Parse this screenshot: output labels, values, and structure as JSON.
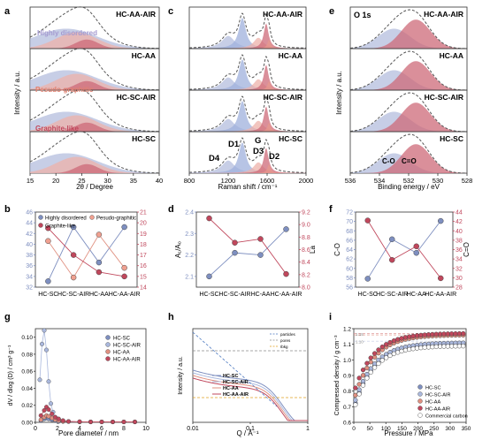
{
  "colors": {
    "blue": "#7e8fc0",
    "blue_fill": "#b4bedd",
    "pink": "#dc8c8c",
    "pink_fill": "#eeb1a9",
    "red": "#c0475c",
    "red_fill": "#cd6a78",
    "purple": "#a49ad0",
    "gray": "#8a8a8a",
    "orange": "#e0a020",
    "blue_dash": "#4d79c0"
  },
  "panels": {
    "a": {
      "letter": "a",
      "xlabel": "2θ / Degree",
      "ylabel": "Intensity / a.u.",
      "samples": [
        "HC-AA-AIR",
        "HC-AA",
        "HC-SC-AIR",
        "HC-SC"
      ],
      "annotations": [
        "Highly disordered",
        "Pesudo-graphitic",
        "Graphite-like"
      ],
      "xticks": [
        "15",
        "20",
        "25",
        "30",
        "35",
        "40"
      ],
      "xlim": [
        15,
        40
      ]
    },
    "c": {
      "letter": "c",
      "xlabel": "Raman shift / cm⁻¹",
      "samples": [
        "HC-AA-AIR",
        "HC-AA",
        "HC-SC-AIR",
        "HC-SC"
      ],
      "xticks": [
        "800",
        "1200",
        "1600",
        "2000"
      ],
      "xlim": [
        800,
        2000
      ]
    },
    "e": {
      "letter": "e",
      "xlabel": "Binding energy / eV",
      "title": "O 1s",
      "samples": [
        "HC-AA-AIR",
        "HC-AA",
        "HC-SC-AIR",
        "HC-SC"
      ],
      "xticks": [
        "536",
        "534",
        "532",
        "530",
        "528"
      ],
      "xlim": [
        536,
        528
      ]
    },
    "g": {
      "letter": "g",
      "xlabel": "Pore diameter / nm",
      "ylabel": "dV / dlog (D) / cm³ g⁻¹",
      "xticks": [
        "0",
        "2",
        "4",
        "6",
        "8",
        "10"
      ],
      "yticks": [
        "0.00",
        "0.02",
        "0.04",
        "0.06",
        "0.08",
        "0.10"
      ]
    },
    "h": {
      "letter": "h",
      "xlabel": "Q / Å⁻¹",
      "ylabel": "Intensity / a.u.",
      "xticks": [
        "0.01",
        "0.1",
        "1"
      ],
      "legend_extra": [
        "particles",
        "pores",
        "Ibkg"
      ]
    },
    "i": {
      "letter": "i",
      "xlabel": "Pressure / MPa",
      "ylabel": "Compressed density / g cm⁻³",
      "xticks": [
        "0",
        "50",
        "100",
        "150",
        "200",
        "250",
        "300",
        "350"
      ],
      "yticks": [
        "0.6",
        "0.7",
        "0.8",
        "0.9",
        "1.0",
        "1.1",
        "1.2"
      ],
      "side_labels": [
        "1.15",
        "1.10"
      ]
    }
  },
  "chart_data": [
    {
      "panel": "b",
      "type": "line",
      "categories": [
        "HC-SC",
        "HC-SC-AIR",
        "HC-AA",
        "HC-AA-AIR"
      ],
      "series": [
        {
          "name": "Highly disordered",
          "axis": "left",
          "values": [
            33.1,
            43.2,
            36.6,
            43.2
          ]
        },
        {
          "name": "Pesudo-graphitic",
          "axis": "right",
          "values": [
            18.3,
            14.9,
            18.9,
            15.8
          ]
        },
        {
          "name": "Graphite-like",
          "axis": "right",
          "values": [
            19.5,
            17.0,
            15.4,
            15.0
          ]
        }
      ],
      "yticks_left": [
        "32",
        "34",
        "36",
        "38",
        "40",
        "42",
        "44",
        "46"
      ],
      "ylim_left": [
        32,
        46
      ],
      "yticks_right": [
        "14",
        "15",
        "16",
        "17",
        "18",
        "19",
        "20",
        "21"
      ],
      "ylim_right": [
        14,
        21
      ]
    },
    {
      "panel": "d",
      "type": "line",
      "categories": [
        "HC-SC",
        "HC-SC-AIR",
        "HC-AA",
        "HC-AA-AIR"
      ],
      "ylabel_left": "A_D1/A_G",
      "ylabel_right": "La",
      "series": [
        {
          "axis": "left",
          "values": [
            2.1,
            2.21,
            2.2,
            2.32
          ]
        },
        {
          "axis": "right",
          "values": [
            9.1,
            8.71,
            8.77,
            8.21
          ]
        }
      ],
      "yticks_left": [
        "2.1",
        "2.2",
        "2.3",
        "2.4"
      ],
      "ylim_left": [
        2.05,
        2.4
      ],
      "yticks_right": [
        "8.0",
        "8.2",
        "8.4",
        "8.6",
        "8.8",
        "9.0",
        "9.2"
      ],
      "ylim_right": [
        8.0,
        9.2
      ]
    },
    {
      "panel": "f",
      "type": "line",
      "categories": [
        "HC-SC",
        "HC-SC-AIR",
        "HC-AA",
        "HC-AA-AIR"
      ],
      "ylabel_left": "C-O",
      "ylabel_right": "C=O",
      "series": [
        {
          "axis": "left",
          "values": [
            57.8,
            66.2,
            63.3,
            70.1
          ]
        },
        {
          "axis": "right",
          "values": [
            42.2,
            33.8,
            36.7,
            29.9
          ]
        }
      ],
      "yticks_left": [
        "56",
        "58",
        "60",
        "62",
        "64",
        "66",
        "68",
        "70",
        "72"
      ],
      "ylim_left": [
        56,
        72
      ],
      "yticks_right": [
        "28",
        "30",
        "32",
        "34",
        "36",
        "38",
        "40",
        "42",
        "44"
      ],
      "ylim_right": [
        28,
        44
      ]
    },
    {
      "panel": "g",
      "type": "scatter",
      "series": [
        {
          "name": "HC-SC",
          "x": [
            0.5,
            0.8,
            1.0,
            1.2,
            1.5,
            1.8,
            2.1,
            2.5,
            3,
            4,
            5,
            6,
            7,
            8,
            9
          ],
          "y": [
            0.002,
            0.004,
            0.005,
            0.004,
            0.003,
            0.002,
            0.001,
            0.001,
            0.001,
            0.0005,
            0.0005,
            0.0005,
            0.0005,
            0.0005,
            0.0005
          ]
        },
        {
          "name": "HC-SC-AIR",
          "x": [
            0.4,
            0.6,
            0.8,
            1.0,
            1.2,
            1.4,
            1.6,
            1.8,
            2.1,
            2.5,
            3,
            4,
            5,
            6,
            7,
            8,
            9
          ],
          "y": [
            0.05,
            0.092,
            0.108,
            0.085,
            0.048,
            0.022,
            0.012,
            0.006,
            0.004,
            0.002,
            0.001,
            0.0005,
            0.0005,
            0.0005,
            0.0005,
            0.0005,
            0.0005
          ]
        },
        {
          "name": "HC-AA",
          "x": [
            0.5,
            0.8,
            1.0,
            1.2,
            1.5,
            1.8,
            2.1,
            2.5,
            3,
            4,
            5,
            6,
            7,
            8,
            9
          ],
          "y": [
            0.003,
            0.006,
            0.008,
            0.007,
            0.005,
            0.003,
            0.002,
            0.001,
            0.001,
            0.0005,
            0.0005,
            0.0005,
            0.0005,
            0.0005,
            0.0005
          ]
        },
        {
          "name": "HC-AA-AIR",
          "x": [
            0.5,
            0.8,
            1.0,
            1.2,
            1.5,
            1.8,
            2.1,
            2.5,
            3,
            4,
            5,
            6,
            7,
            8,
            9
          ],
          "y": [
            0.008,
            0.014,
            0.018,
            0.015,
            0.01,
            0.006,
            0.004,
            0.002,
            0.001,
            0.0008,
            0.0005,
            0.0005,
            0.0005,
            0.0005,
            0.0005
          ]
        }
      ],
      "xlim": [
        0,
        10
      ],
      "ylim": [
        0,
        0.11
      ]
    },
    {
      "panel": "i",
      "type": "scatter",
      "series": [
        {
          "name": "HC-SC",
          "p0": 0.69,
          "pinf": 1.1
        },
        {
          "name": "HC-SC-AIR",
          "p0": 0.71,
          "pinf": 1.11
        },
        {
          "name": "HC-AA",
          "p0": 0.74,
          "pinf": 1.16
        },
        {
          "name": "HC-AA-AIR",
          "p0": 0.79,
          "pinf": 1.17
        },
        {
          "name": "Commercial carbon",
          "p0": 0.68,
          "pinf": 1.09
        }
      ],
      "xlim": [
        0,
        350
      ],
      "ylim": [
        0.6,
        1.2
      ]
    }
  ]
}
